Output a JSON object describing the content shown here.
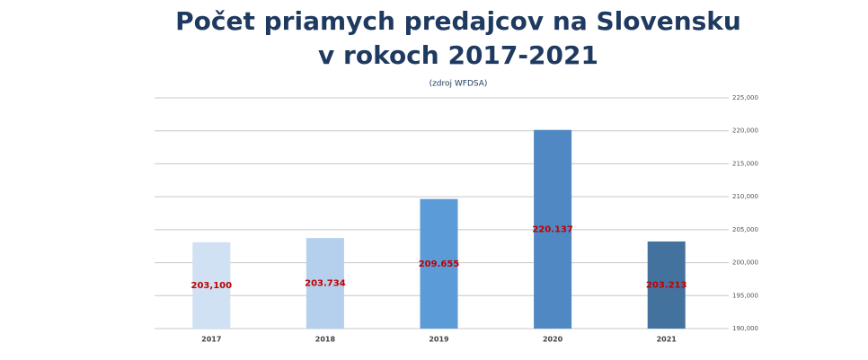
{
  "chart_data": {
    "type": "bar",
    "title": [
      "Počet priamych predajcov na Slovensku",
      "v rokoch 2017-2021"
    ],
    "subtitle": "(zdroj WFDSA)",
    "categories": [
      "2017",
      "2018",
      "2019",
      "2020",
      "2021"
    ],
    "values": [
      203100,
      203734,
      209655,
      220137,
      203213
    ],
    "value_labels": [
      "203,100",
      "203.734",
      "209.655",
      "220.137",
      "203.213"
    ],
    "colors": [
      "#cfe1f3",
      "#b4d0ec",
      "#5b9bd8",
      "#4f88c2",
      "#44729f"
    ],
    "label_color": "#c00000",
    "ylim": [
      190000,
      225000
    ],
    "yticks": [
      {
        "value": 190000,
        "label": "190,000"
      },
      {
        "value": 195000,
        "label": "195,000"
      },
      {
        "value": 200000,
        "label": "200,000"
      },
      {
        "value": 205000,
        "label": "205,000"
      },
      {
        "value": 210000,
        "label": "210,000"
      },
      {
        "value": 215000,
        "label": "215,000"
      },
      {
        "value": 220000,
        "label": "220,000"
      },
      {
        "value": 225000,
        "label": "225,000"
      }
    ],
    "grid": true
  }
}
